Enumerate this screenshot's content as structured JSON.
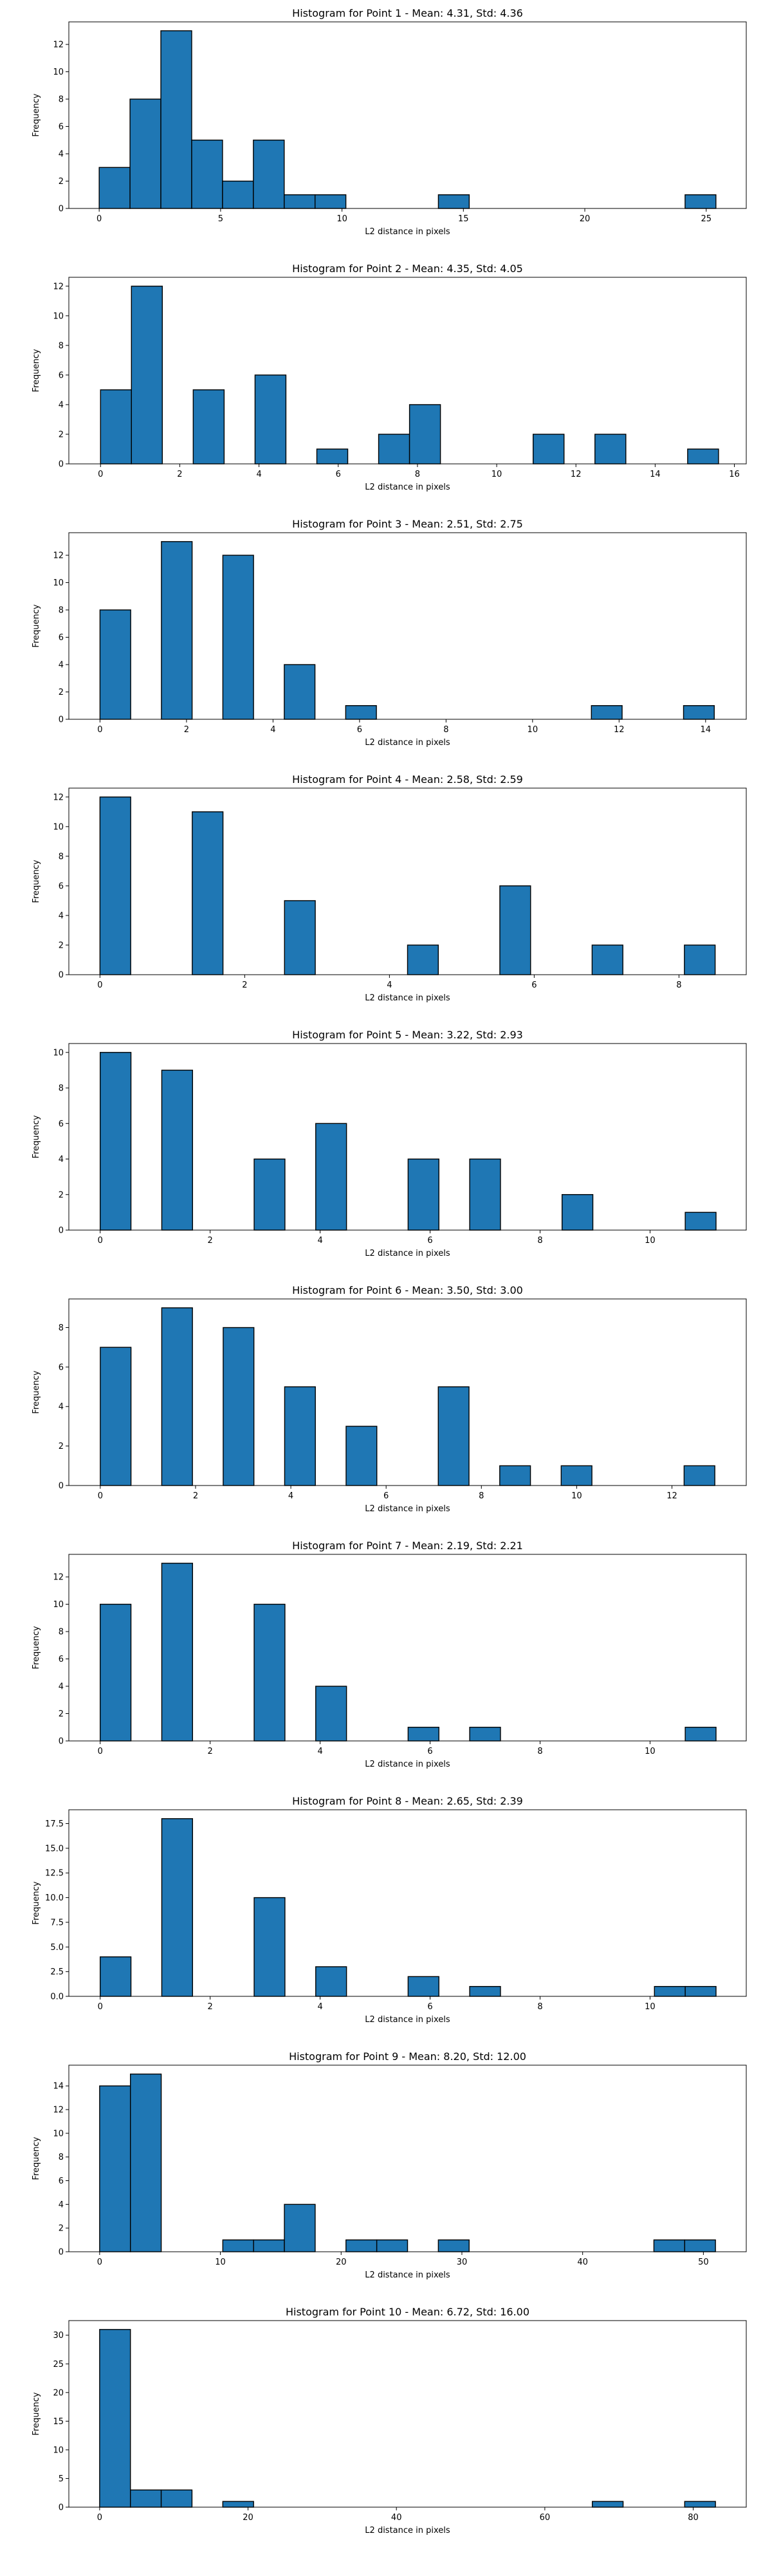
{
  "chart_data": [
    {
      "type": "histogram",
      "title": "Histogram for Point 1 - Mean: 4.31, Std: 4.36",
      "xlabel": "L2 distance in pixels",
      "ylabel": "Frequency",
      "xlim": [
        -1.25,
        26.65
      ],
      "ylim": [
        0,
        13.65
      ],
      "xticks": [
        0,
        5,
        10,
        15,
        20,
        25
      ],
      "yticks": [
        0,
        2,
        4,
        6,
        8,
        10,
        12
      ],
      "bin_edges": [
        0.0,
        1.27,
        2.54,
        3.81,
        5.08,
        6.35,
        7.62,
        8.89,
        10.16,
        11.43,
        12.7,
        13.97,
        15.24,
        16.51,
        17.78,
        19.05,
        20.32,
        21.59,
        22.86,
        24.13,
        25.4
      ],
      "counts": [
        3,
        8,
        13,
        5,
        2,
        5,
        1,
        1,
        0,
        0,
        0,
        1,
        0,
        0,
        0,
        0,
        0,
        0,
        0,
        1
      ],
      "color": "#1f77b4"
    },
    {
      "type": "histogram",
      "title": "Histogram for Point 2 - Mean: 4.35, Std: 4.05",
      "xlabel": "L2 distance in pixels",
      "ylabel": "Frequency",
      "xlim": [
        -0.8,
        16.3
      ],
      "ylim": [
        0,
        12.6
      ],
      "xticks": [
        0,
        2,
        4,
        6,
        8,
        10,
        12,
        14,
        16
      ],
      "yticks": [
        0,
        2,
        4,
        6,
        8,
        10,
        12
      ],
      "bin_edges": [
        0.0,
        0.78,
        1.56,
        2.34,
        3.12,
        3.9,
        4.68,
        5.46,
        6.24,
        7.02,
        7.8,
        8.58,
        9.36,
        10.14,
        10.92,
        11.7,
        12.48,
        13.26,
        14.04,
        14.82,
        15.6
      ],
      "counts": [
        5,
        12,
        0,
        5,
        0,
        6,
        0,
        1,
        0,
        2,
        4,
        0,
        0,
        0,
        2,
        0,
        2,
        0,
        0,
        1
      ],
      "color": "#1f77b4"
    },
    {
      "type": "histogram",
      "title": "Histogram for Point 3 - Mean: 2.51, Std: 2.75",
      "xlabel": "L2 distance in pixels",
      "ylabel": "Frequency",
      "xlim": [
        -0.72,
        14.94
      ],
      "ylim": [
        0,
        13.65
      ],
      "xticks": [
        0,
        2,
        4,
        6,
        8,
        10,
        12,
        14
      ],
      "yticks": [
        0,
        2,
        4,
        6,
        8,
        10,
        12
      ],
      "bin_edges": [
        0.0,
        0.71,
        1.42,
        2.13,
        2.84,
        3.55,
        4.26,
        4.97,
        5.68,
        6.39,
        7.1,
        7.81,
        8.52,
        9.23,
        9.94,
        10.65,
        11.36,
        12.07,
        12.78,
        13.49,
        14.2
      ],
      "counts": [
        8,
        0,
        13,
        0,
        12,
        0,
        4,
        0,
        1,
        0,
        0,
        0,
        0,
        0,
        0,
        0,
        1,
        0,
        0,
        1
      ],
      "color": "#1f77b4"
    },
    {
      "type": "histogram",
      "title": "Histogram for Point 4 - Mean: 2.58, Std: 2.59",
      "xlabel": "L2 distance in pixels",
      "ylabel": "Frequency",
      "xlim": [
        -0.43,
        8.93
      ],
      "ylim": [
        0,
        12.6
      ],
      "xticks": [
        0,
        2,
        4,
        6,
        8
      ],
      "yticks": [
        0,
        2,
        4,
        6,
        8,
        10,
        12
      ],
      "bin_edges": [
        0.0,
        0.425,
        0.85,
        1.275,
        1.7,
        2.125,
        2.55,
        2.975,
        3.4,
        3.825,
        4.25,
        4.675,
        5.1,
        5.525,
        5.95,
        6.375,
        6.8,
        7.225,
        7.65,
        8.075,
        8.5
      ],
      "counts": [
        12,
        0,
        0,
        11,
        0,
        0,
        5,
        0,
        0,
        0,
        2,
        0,
        0,
        6,
        0,
        0,
        2,
        0,
        0,
        2
      ],
      "color": "#1f77b4"
    },
    {
      "type": "histogram",
      "title": "Histogram for Point 5 - Mean: 3.22, Std: 2.93",
      "xlabel": "L2 distance in pixels",
      "ylabel": "Frequency",
      "xlim": [
        -0.57,
        11.75
      ],
      "ylim": [
        0,
        10.5
      ],
      "xticks": [
        0,
        2,
        4,
        6,
        8,
        10
      ],
      "yticks": [
        0,
        2,
        4,
        6,
        8,
        10
      ],
      "bin_edges": [
        0.0,
        0.56,
        1.12,
        1.68,
        2.24,
        2.8,
        3.36,
        3.92,
        4.48,
        5.04,
        5.6,
        6.16,
        6.72,
        7.28,
        7.84,
        8.4,
        8.96,
        9.52,
        10.08,
        10.64,
        11.2
      ],
      "counts": [
        10,
        0,
        9,
        0,
        0,
        4,
        0,
        6,
        0,
        0,
        4,
        0,
        4,
        0,
        0,
        2,
        0,
        0,
        0,
        1
      ],
      "color": "#1f77b4"
    },
    {
      "type": "histogram",
      "title": "Histogram for Point 6 - Mean: 3.50, Std: 3.00",
      "xlabel": "L2 distance in pixels",
      "ylabel": "Frequency",
      "xlim": [
        -0.66,
        13.56
      ],
      "ylim": [
        0,
        9.45
      ],
      "xticks": [
        0,
        2,
        4,
        6,
        8,
        10,
        12
      ],
      "yticks": [
        0,
        2,
        4,
        6,
        8
      ],
      "bin_edges": [
        0.0,
        0.645,
        1.29,
        1.935,
        2.58,
        3.225,
        3.87,
        4.515,
        5.16,
        5.805,
        6.45,
        7.095,
        7.74,
        8.385,
        9.03,
        9.675,
        10.32,
        10.965,
        11.61,
        12.255,
        12.9
      ],
      "counts": [
        7,
        0,
        9,
        0,
        8,
        0,
        5,
        0,
        3,
        0,
        0,
        5,
        0,
        1,
        0,
        1,
        0,
        0,
        0,
        1
      ],
      "color": "#1f77b4"
    },
    {
      "type": "histogram",
      "title": "Histogram for Point 7 - Mean: 2.19, Std: 2.21",
      "xlabel": "L2 distance in pixels",
      "ylabel": "Frequency",
      "xlim": [
        -0.57,
        11.75
      ],
      "ylim": [
        0,
        13.65
      ],
      "xticks": [
        0,
        2,
        4,
        6,
        8,
        10
      ],
      "yticks": [
        0,
        2,
        4,
        6,
        8,
        10,
        12
      ],
      "bin_edges": [
        0.0,
        0.56,
        1.12,
        1.68,
        2.24,
        2.8,
        3.36,
        3.92,
        4.48,
        5.04,
        5.6,
        6.16,
        6.72,
        7.28,
        7.84,
        8.4,
        8.96,
        9.52,
        10.08,
        10.64,
        11.2
      ],
      "counts": [
        10,
        0,
        13,
        0,
        0,
        10,
        0,
        4,
        0,
        0,
        1,
        0,
        1,
        0,
        0,
        0,
        0,
        0,
        0,
        1
      ],
      "color": "#1f77b4"
    },
    {
      "type": "histogram",
      "title": "Histogram for Point 8 - Mean: 2.65, Std: 2.39",
      "xlabel": "L2 distance in pixels",
      "ylabel": "Frequency",
      "xlim": [
        -0.57,
        11.75
      ],
      "ylim": [
        0,
        18.9
      ],
      "xticks": [
        0,
        2,
        4,
        6,
        8,
        10
      ],
      "yticks": [
        0,
        2.5,
        5,
        7.5,
        10,
        12.5,
        15,
        17.5
      ],
      "ytick_labels": [
        "0.0",
        "2.5",
        "5.0",
        "7.5",
        "10.0",
        "12.5",
        "15.0",
        "17.5"
      ],
      "bin_edges": [
        0.0,
        0.56,
        1.12,
        1.68,
        2.24,
        2.8,
        3.36,
        3.92,
        4.48,
        5.04,
        5.6,
        6.16,
        6.72,
        7.28,
        7.84,
        8.4,
        8.96,
        9.52,
        10.08,
        10.64,
        11.2
      ],
      "counts": [
        4,
        0,
        18,
        0,
        0,
        10,
        0,
        3,
        0,
        0,
        2,
        0,
        1,
        0,
        0,
        0,
        0,
        0,
        1,
        1
      ],
      "color": "#1f77b4"
    },
    {
      "type": "histogram",
      "title": "Histogram for Point 9 - Mean: 8.20, Std: 12.00",
      "xlabel": "L2 distance in pixels",
      "ylabel": "Frequency",
      "xlim": [
        -2.55,
        53.55
      ],
      "ylim": [
        0,
        15.75
      ],
      "xticks": [
        0,
        10,
        20,
        30,
        40,
        50
      ],
      "yticks": [
        0,
        2,
        4,
        6,
        8,
        10,
        12,
        14
      ],
      "bin_edges": [
        0.0,
        2.55,
        5.1,
        7.65,
        10.2,
        12.75,
        15.3,
        17.85,
        20.4,
        22.95,
        25.5,
        28.05,
        30.6,
        33.15,
        35.7,
        38.25,
        40.8,
        43.35,
        45.9,
        48.45,
        51.0
      ],
      "counts": [
        14,
        15,
        0,
        0,
        1,
        1,
        4,
        0,
        1,
        1,
        0,
        1,
        0,
        0,
        0,
        0,
        0,
        0,
        1,
        1
      ],
      "color": "#1f77b4"
    },
    {
      "type": "histogram",
      "title": "Histogram for Point 10 - Mean: 6.72, Std: 16.00",
      "xlabel": "L2 distance in pixels",
      "ylabel": "Frequency",
      "xlim": [
        -4.15,
        87.15
      ],
      "ylim": [
        0,
        32.55
      ],
      "xticks": [
        0,
        20,
        40,
        60,
        80
      ],
      "yticks": [
        0,
        5,
        10,
        15,
        20,
        25,
        30
      ],
      "bin_edges": [
        0.0,
        4.15,
        8.3,
        12.45,
        16.6,
        20.75,
        24.9,
        29.05,
        33.2,
        37.35,
        41.5,
        45.65,
        49.8,
        53.95,
        58.1,
        62.25,
        66.4,
        70.55,
        74.7,
        78.85,
        83.0
      ],
      "counts": [
        31,
        3,
        3,
        0,
        1,
        0,
        0,
        0,
        0,
        0,
        0,
        0,
        0,
        0,
        0,
        0,
        1,
        0,
        0,
        1
      ],
      "color": "#1f77b4"
    }
  ]
}
